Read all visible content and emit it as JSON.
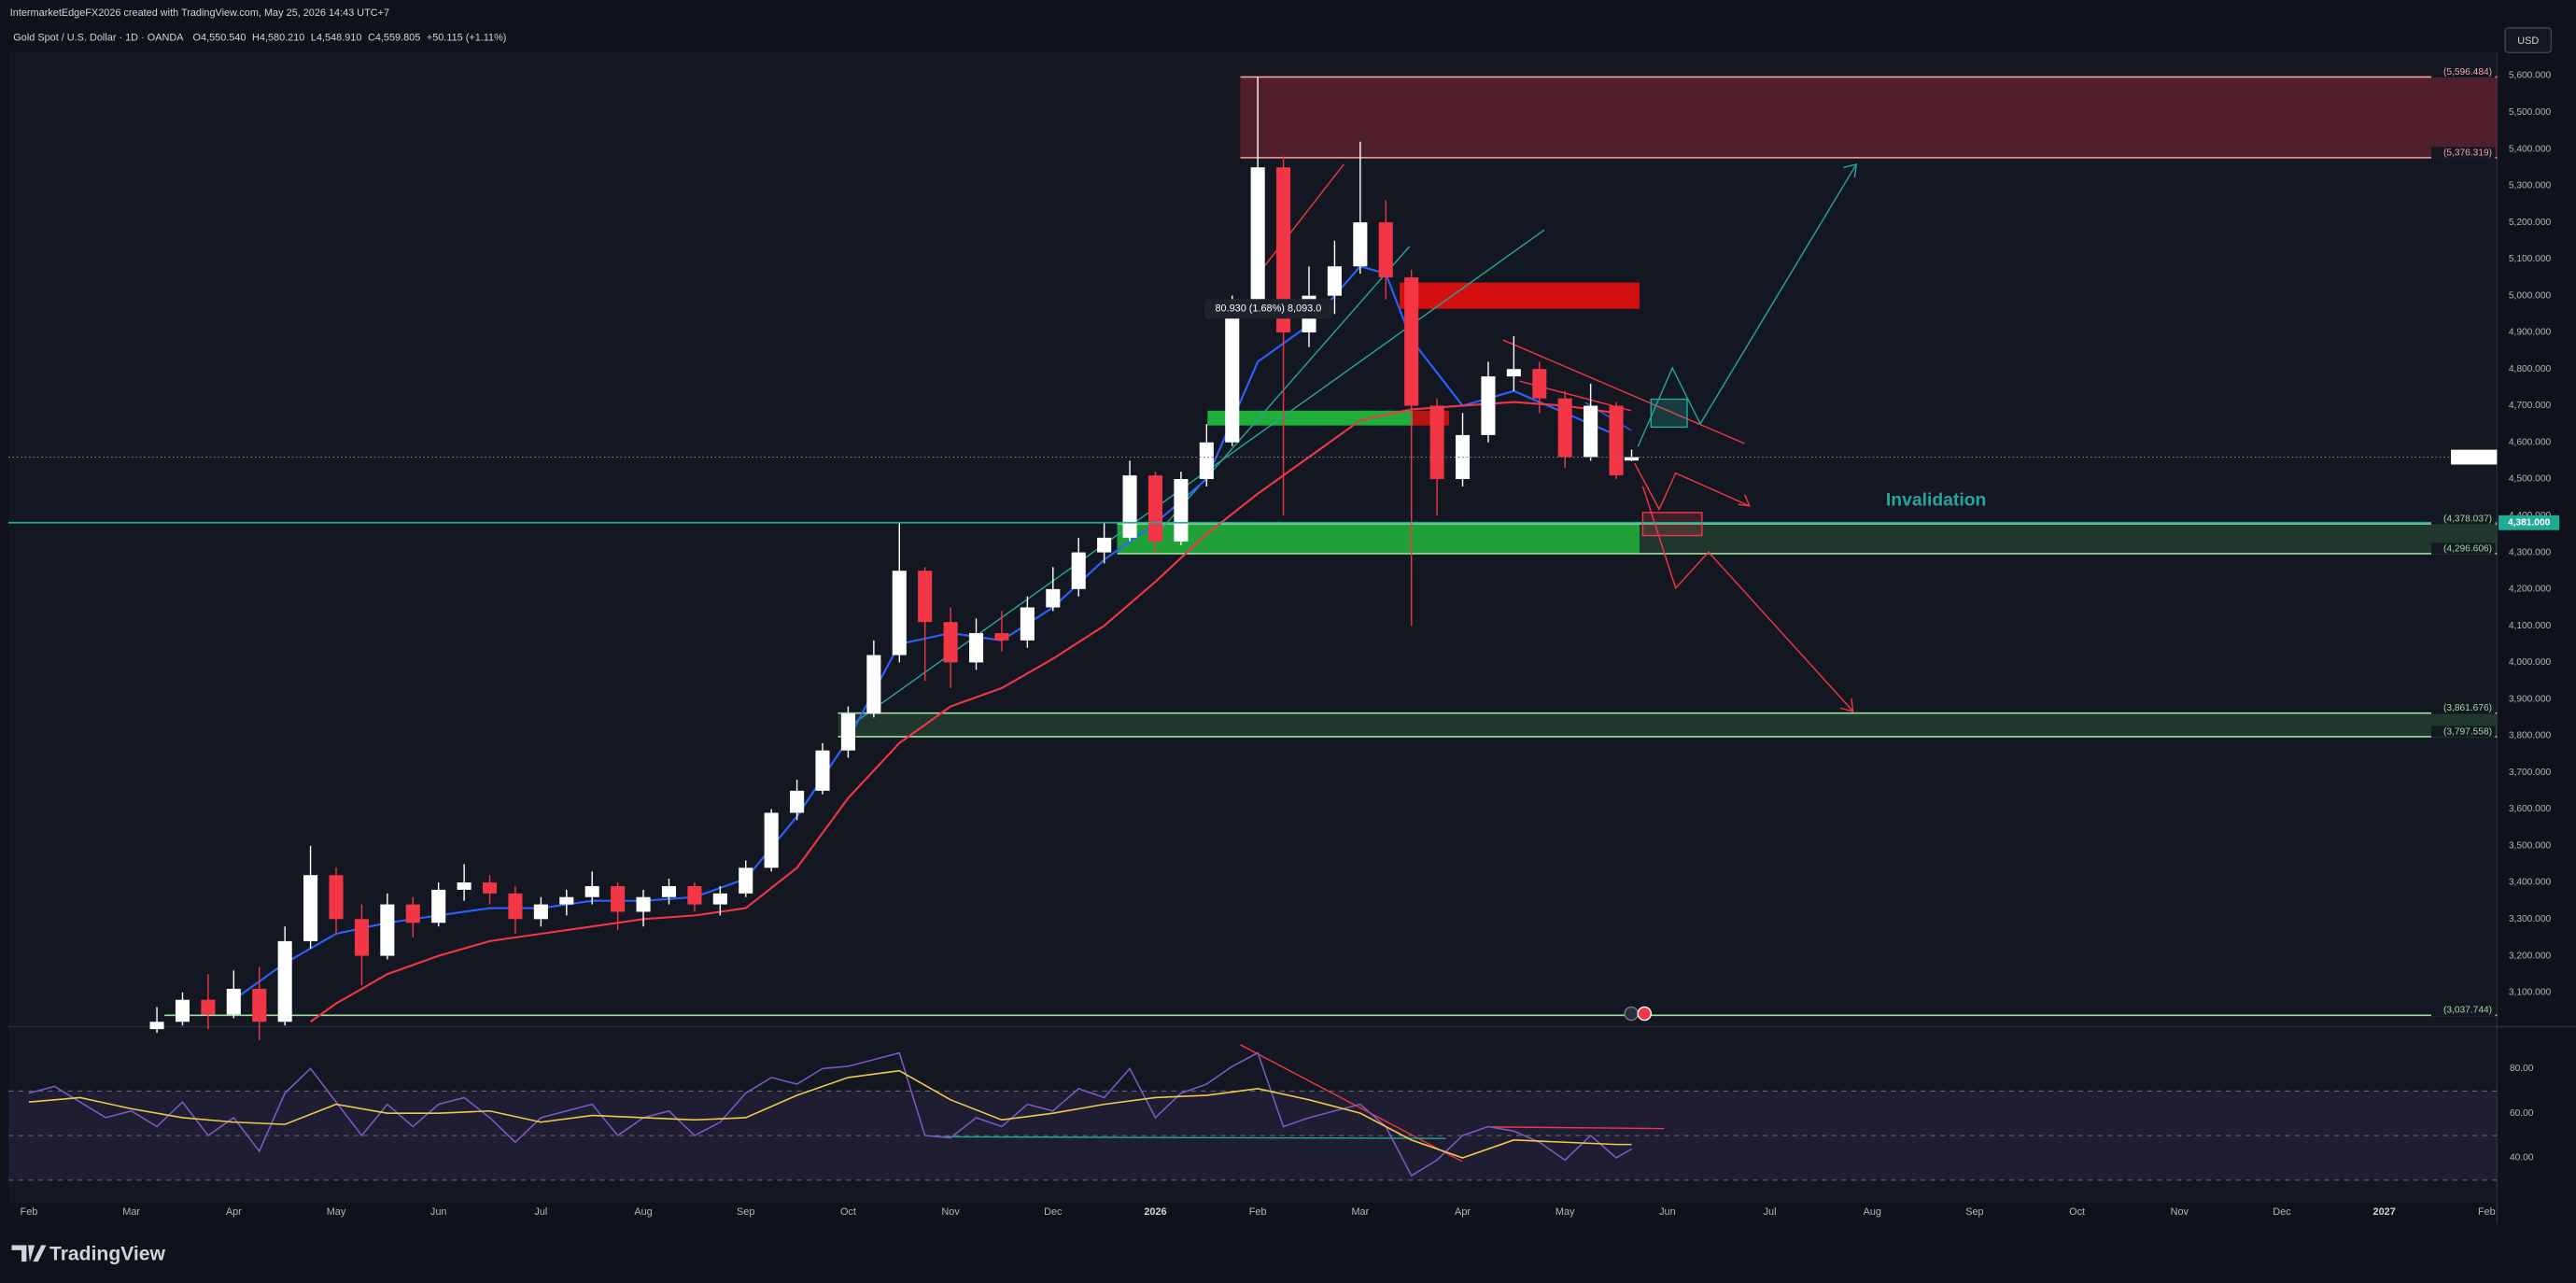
{
  "header": {
    "credit": "IntermarketEdgeFX2026 created with TradingView.com, May 25, 2026 14:43 UTC+7"
  },
  "toolbar": {
    "currency": "USD"
  },
  "footer": {
    "brand": "TradingView"
  },
  "chart_data": [
    {
      "type": "candlestick",
      "title": "Gold Spot / U.S. Dollar · 1D · OANDA",
      "ohlc_legend": [
        {
          "prefix": "O",
          "value": "4,550.540"
        },
        {
          "prefix": "H",
          "value": "4,580.210"
        },
        {
          "prefix": "L",
          "value": "4,548.910"
        },
        {
          "prefix": "C",
          "value": "4,559.805"
        }
      ],
      "change": "+50.115 (+1.11%)",
      "up_color": "#ffffff",
      "down_color": "#f23645",
      "grid": false,
      "xlim": [
        -0.2,
        24.1
      ],
      "ylim": [
        3020,
        5663
      ],
      "xticks": [
        {
          "value": 0,
          "label": "Feb"
        },
        {
          "value": 1,
          "label": "Mar"
        },
        {
          "value": 2,
          "label": "Apr"
        },
        {
          "value": 3,
          "label": "May"
        },
        {
          "value": 4,
          "label": "Jun"
        },
        {
          "value": 5,
          "label": "Jul"
        },
        {
          "value": 6,
          "label": "Aug"
        },
        {
          "value": 7,
          "label": "Sep"
        },
        {
          "value": 8,
          "label": "Oct"
        },
        {
          "value": 9,
          "label": "Nov"
        },
        {
          "value": 10,
          "label": "Dec"
        },
        {
          "value": 11,
          "label": "2026"
        },
        {
          "value": 12,
          "label": "Feb"
        },
        {
          "value": 13,
          "label": "Mar"
        },
        {
          "value": 14,
          "label": "Apr"
        },
        {
          "value": 15,
          "label": "May"
        },
        {
          "value": 16,
          "label": "Jun"
        },
        {
          "value": 17,
          "label": "Jul"
        },
        {
          "value": 18,
          "label": "Aug"
        },
        {
          "value": 19,
          "label": "Sep"
        },
        {
          "value": 20,
          "label": "Oct"
        },
        {
          "value": 21,
          "label": "Nov"
        },
        {
          "value": 22,
          "label": "Dec"
        },
        {
          "value": 23,
          "label": "2027"
        },
        {
          "value": 24,
          "label": "Feb"
        }
      ],
      "yticks": [
        {
          "value": 3100,
          "label": "3,100.000"
        },
        {
          "value": 3200,
          "label": "3,200.000"
        },
        {
          "value": 3300,
          "label": "3,300.000"
        },
        {
          "value": 3400,
          "label": "3,400.000"
        },
        {
          "value": 3500,
          "label": "3,500.000"
        },
        {
          "value": 3600,
          "label": "3,600.000"
        },
        {
          "value": 3700,
          "label": "3,700.000"
        },
        {
          "value": 3800,
          "label": "3,800.000"
        },
        {
          "value": 3900,
          "label": "3,900.000"
        },
        {
          "value": 4000,
          "label": "4,000.000"
        },
        {
          "value": 4100,
          "label": "4,100.000"
        },
        {
          "value": 4200,
          "label": "4,200.000"
        },
        {
          "value": 4300,
          "label": "4,300.000"
        },
        {
          "value": 4400,
          "label": "4,400.000"
        },
        {
          "value": 4500,
          "label": "4,500.000"
        },
        {
          "value": 4600,
          "label": "4,600.000"
        },
        {
          "value": 4700,
          "label": "4,700.000"
        },
        {
          "value": 4800,
          "label": "4,800.000"
        },
        {
          "value": 4900,
          "label": "4,900.000"
        },
        {
          "value": 5000,
          "label": "5,000.000"
        },
        {
          "value": 5100,
          "label": "5,100.000"
        },
        {
          "value": 5200,
          "label": "5,200.000"
        },
        {
          "value": 5300,
          "label": "5,300.000"
        },
        {
          "value": 5400,
          "label": "5,400.000"
        },
        {
          "value": 5500,
          "label": "5,500.000"
        },
        {
          "value": 5600,
          "label": "5,600.000"
        }
      ],
      "x": [
        1.25,
        1.5,
        1.75,
        2,
        2.25,
        2.5,
        2.75,
        3,
        3.25,
        3.5,
        3.75,
        4,
        4.25,
        4.5,
        4.75,
        5,
        5.25,
        5.5,
        5.75,
        6,
        6.25,
        6.5,
        6.75,
        7,
        7.25,
        7.5,
        7.75,
        8,
        8.25,
        8.5,
        8.75,
        9,
        9.25,
        9.5,
        9.75,
        10,
        10.25,
        10.5,
        10.75,
        11,
        11.25,
        11.5,
        11.75,
        12,
        12.25,
        12.5,
        12.75,
        13,
        13.25,
        13.5,
        13.75,
        14,
        14.25,
        14.5,
        14.75,
        15,
        15.25,
        15.5,
        15.65
      ],
      "ohlc": [
        [
          3000,
          3060,
          2990,
          3020
        ],
        [
          3020,
          3100,
          3010,
          3080
        ],
        [
          3080,
          3150,
          3000,
          3040
        ],
        [
          3040,
          3160,
          3030,
          3110
        ],
        [
          3110,
          3170,
          2970,
          3020
        ],
        [
          3020,
          3280,
          3010,
          3240
        ],
        [
          3240,
          3500,
          3220,
          3420
        ],
        [
          3420,
          3440,
          3260,
          3300
        ],
        [
          3300,
          3340,
          3120,
          3200
        ],
        [
          3200,
          3370,
          3190,
          3340
        ],
        [
          3340,
          3360,
          3250,
          3290
        ],
        [
          3290,
          3400,
          3280,
          3380
        ],
        [
          3380,
          3450,
          3350,
          3400
        ],
        [
          3400,
          3420,
          3340,
          3370
        ],
        [
          3370,
          3390,
          3260,
          3300
        ],
        [
          3300,
          3360,
          3280,
          3340
        ],
        [
          3340,
          3380,
          3310,
          3360
        ],
        [
          3360,
          3430,
          3340,
          3390
        ],
        [
          3390,
          3400,
          3270,
          3320
        ],
        [
          3320,
          3380,
          3280,
          3360
        ],
        [
          3360,
          3410,
          3340,
          3390
        ],
        [
          3390,
          3400,
          3320,
          3340
        ],
        [
          3340,
          3390,
          3310,
          3370
        ],
        [
          3370,
          3460,
          3360,
          3440
        ],
        [
          3440,
          3600,
          3430,
          3590
        ],
        [
          3590,
          3680,
          3570,
          3650
        ],
        [
          3650,
          3780,
          3640,
          3760
        ],
        [
          3760,
          3880,
          3740,
          3860
        ],
        [
          3860,
          4060,
          3850,
          4020
        ],
        [
          4020,
          4380,
          4000,
          4250
        ],
        [
          4250,
          4260,
          3950,
          4110
        ],
        [
          4110,
          4150,
          3930,
          4000
        ],
        [
          4000,
          4120,
          3980,
          4080
        ],
        [
          4080,
          4140,
          4030,
          4060
        ],
        [
          4060,
          4180,
          4040,
          4150
        ],
        [
          4150,
          4260,
          4140,
          4200
        ],
        [
          4200,
          4340,
          4180,
          4300
        ],
        [
          4300,
          4380,
          4270,
          4340
        ],
        [
          4340,
          4550,
          4330,
          4510
        ],
        [
          4510,
          4520,
          4300,
          4330
        ],
        [
          4330,
          4520,
          4320,
          4500
        ],
        [
          4500,
          4650,
          4480,
          4600
        ],
        [
          4600,
          5000,
          4590,
          4980
        ],
        [
          4980,
          5596,
          4960,
          5350
        ],
        [
          5350,
          5380,
          4400,
          4900
        ],
        [
          4900,
          5080,
          4860,
          5000
        ],
        [
          5000,
          5150,
          4950,
          5080
        ],
        [
          5080,
          5420,
          5060,
          5200
        ],
        [
          5200,
          5260,
          4990,
          5050
        ],
        [
          5050,
          5070,
          4100,
          4700
        ],
        [
          4700,
          4720,
          4400,
          4500
        ],
        [
          4500,
          4680,
          4480,
          4620
        ],
        [
          4620,
          4820,
          4600,
          4780
        ],
        [
          4780,
          4890,
          4740,
          4800
        ],
        [
          4800,
          4820,
          4680,
          4720
        ],
        [
          4720,
          4740,
          4530,
          4560
        ],
        [
          4560,
          4760,
          4550,
          4700
        ],
        [
          4700,
          4710,
          4500,
          4510
        ],
        [
          4550.54,
          4580.21,
          4548.91,
          4559.805
        ]
      ],
      "overlays": [
        {
          "color": "#2962ff",
          "x": [
            2,
            2.5,
            3,
            3.5,
            4,
            4.5,
            5,
            5.5,
            6,
            6.5,
            7,
            7.5,
            8,
            8.5,
            9,
            9.5,
            10,
            10.5,
            11,
            11.5,
            12,
            12.5,
            13,
            13.25,
            13.5,
            14,
            14.5,
            15,
            15.5
          ],
          "values": [
            3080,
            3180,
            3260,
            3290,
            3310,
            3330,
            3330,
            3350,
            3350,
            3360,
            3410,
            3580,
            3790,
            4050,
            4080,
            4060,
            4150,
            4280,
            4380,
            4500,
            4820,
            4920,
            5080,
            5060,
            4880,
            4700,
            4740,
            4680,
            4620
          ]
        },
        {
          "color": "#f23645",
          "x": [
            2.75,
            3,
            3.5,
            4,
            4.5,
            5,
            5.5,
            6,
            6.5,
            7,
            7.5,
            8,
            8.5,
            9,
            9.5,
            10,
            10.5,
            11,
            11.5,
            12,
            12.5,
            13,
            13.5,
            14,
            14.5,
            15,
            15.5
          ],
          "values": [
            3020,
            3070,
            3150,
            3200,
            3240,
            3260,
            3280,
            3300,
            3310,
            3330,
            3440,
            3630,
            3780,
            3880,
            3930,
            4010,
            4100,
            4220,
            4350,
            4460,
            4560,
            4660,
            4690,
            4700,
            4710,
            4700,
            4680
          ]
        }
      ],
      "levels": [
        {
          "value": 5596.484,
          "label": "(5,596.484)",
          "color": "#f7a1a8"
        },
        {
          "value": 5376.319,
          "label": "(5,376.319)",
          "color": "#f7a1a8"
        },
        {
          "value": 4378.037,
          "label": "(4,378.037)",
          "color": "#9fdc9f"
        },
        {
          "value": 4296.606,
          "label": "(4,296.606)",
          "color": "#9fdc9f"
        },
        {
          "value": 3861.676,
          "label": "(3,861.676)",
          "color": "#9fdc9f"
        },
        {
          "value": 3797.558,
          "label": "(3,797.558)",
          "color": "#9fdc9f"
        },
        {
          "value": 3037.744,
          "label": "(3,037.744)",
          "color": "#9fdc9f"
        }
      ],
      "price_line": {
        "value": 4381,
        "label": "4,381.000",
        "color": "#22ab94"
      },
      "annotations": {
        "invalidation": "Invalidation",
        "measure": "80.930 (1.68%) 8,093.0"
      }
    },
    {
      "type": "line",
      "xlim": [
        -0.2,
        24.1
      ],
      "ylim": [
        20,
        98
      ],
      "yticks": [
        {
          "value": 40,
          "label": "40.00"
        },
        {
          "value": 60,
          "label": "60.00"
        },
        {
          "value": 80,
          "label": "80.00"
        }
      ],
      "guide_levels": [
        70,
        50,
        30
      ],
      "series": [
        {
          "color": "#7e57c2",
          "x": [
            0,
            0.25,
            0.5,
            0.75,
            1,
            1.25,
            1.5,
            1.75,
            2,
            2.25,
            2.5,
            2.75,
            3,
            3.25,
            3.5,
            3.75,
            4,
            4.25,
            4.5,
            4.75,
            5,
            5.25,
            5.5,
            5.75,
            6,
            6.25,
            6.5,
            6.75,
            7,
            7.25,
            7.5,
            7.75,
            8,
            8.25,
            8.5,
            8.75,
            9,
            9.25,
            9.5,
            9.75,
            10,
            10.25,
            10.5,
            10.75,
            11,
            11.25,
            11.5,
            11.75,
            12,
            12.25,
            12.5,
            12.75,
            13,
            13.25,
            13.5,
            13.75,
            14,
            14.25,
            14.5,
            14.75,
            15,
            15.25,
            15.5,
            15.65
          ],
          "values": [
            69,
            72,
            65,
            58,
            61,
            54,
            65,
            50,
            58,
            43,
            69,
            80,
            65,
            50,
            64,
            54,
            64,
            67,
            58,
            47,
            58,
            61,
            64,
            50,
            58,
            61,
            50,
            56,
            69,
            76,
            73,
            80,
            81,
            84,
            87,
            50,
            49,
            58,
            54,
            64,
            61,
            71,
            67,
            80,
            58,
            69,
            73,
            81,
            87,
            54,
            58,
            61,
            64,
            54,
            32,
            39,
            50,
            54,
            52,
            47,
            39,
            50,
            40,
            44
          ]
        },
        {
          "color": "#f0c94a",
          "x": [
            0,
            0.5,
            1,
            1.5,
            2,
            2.5,
            3,
            3.5,
            4,
            4.5,
            5,
            5.5,
            6,
            6.5,
            7,
            7.5,
            8,
            8.5,
            9,
            9.5,
            10,
            10.5,
            11,
            11.5,
            12,
            12.5,
            13,
            13.5,
            14,
            14.5,
            15,
            15.5,
            15.65
          ],
          "values": [
            65,
            67,
            62,
            58,
            56,
            55,
            64,
            60,
            60,
            61,
            56,
            59,
            58,
            57,
            58,
            68,
            76,
            79,
            66,
            57,
            60,
            64,
            67,
            68,
            71,
            66,
            60,
            48,
            40,
            48,
            47,
            46,
            46
          ]
        }
      ]
    }
  ]
}
